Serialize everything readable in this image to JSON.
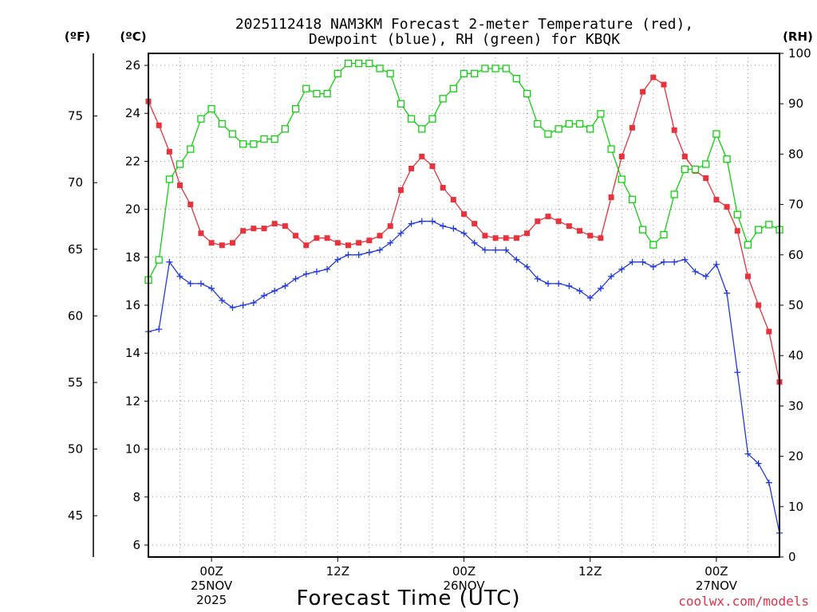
{
  "chart_data": {
    "type": "line",
    "title_line1": "2025112418 NAM3KM Forecast 2-meter Temperature (red),",
    "title_line2": "Dewpoint (blue), RH (green) for KBQK",
    "xlabel": "Forecast Time (UTC)",
    "credit": "coolwx.com/models",
    "units": {
      "fahrenheit": "(ºF)",
      "celsius": "(ºC)",
      "rh": "(RH)"
    },
    "x_range_hours": [
      -6,
      54
    ],
    "celsius_range": [
      5.5,
      26.5
    ],
    "rh_range": [
      0,
      100
    ],
    "x_ticks": [
      {
        "h": 0,
        "line1": "00Z",
        "line2": "25NOV",
        "line3": "2025"
      },
      {
        "h": 12,
        "line1": "12Z",
        "line2": "",
        "line3": ""
      },
      {
        "h": 24,
        "line1": "00Z",
        "line2": "26NOV",
        "line3": ""
      },
      {
        "h": 36,
        "line1": "12Z",
        "line2": "",
        "line3": ""
      },
      {
        "h": 48,
        "line1": "00Z",
        "line2": "27NOV",
        "line3": ""
      }
    ],
    "celsius_ticks": [
      6,
      8,
      10,
      12,
      14,
      16,
      18,
      20,
      22,
      24,
      26
    ],
    "fahrenheit_ticks": [
      45,
      50,
      55,
      60,
      65,
      70,
      75
    ],
    "rh_ticks": [
      0,
      10,
      20,
      30,
      40,
      50,
      60,
      70,
      80,
      90,
      100
    ],
    "series": [
      {
        "name": "Temperature",
        "color": "#e8323c",
        "marker": "filled-square",
        "axis": "celsius",
        "x": [
          -6,
          -5,
          -4,
          -3,
          -2,
          -1,
          0,
          1,
          2,
          3,
          4,
          5,
          6,
          7,
          8,
          9,
          10,
          11,
          12,
          13,
          14,
          15,
          16,
          17,
          18,
          19,
          20,
          21,
          22,
          23,
          24,
          25,
          26,
          27,
          28,
          29,
          30,
          31,
          32,
          33,
          34,
          35,
          36,
          37,
          38,
          39,
          40,
          41,
          42,
          43,
          44,
          45,
          46,
          47,
          48,
          49,
          50,
          51,
          52,
          53,
          54
        ],
        "values": [
          24.5,
          23.5,
          22.4,
          21.0,
          20.2,
          19.0,
          18.6,
          18.5,
          18.6,
          19.1,
          19.2,
          19.2,
          19.4,
          19.3,
          18.9,
          18.5,
          18.8,
          18.8,
          18.6,
          18.5,
          18.6,
          18.7,
          18.9,
          19.3,
          20.8,
          21.7,
          22.2,
          21.8,
          20.9,
          20.4,
          19.8,
          19.4,
          18.9,
          18.8,
          18.8,
          18.8,
          19.0,
          19.5,
          19.7,
          19.5,
          19.3,
          19.1,
          18.9,
          18.8,
          20.5,
          22.2,
          23.4,
          24.9,
          25.5,
          25.2,
          23.3,
          22.2,
          21.6,
          21.3,
          20.4,
          20.1,
          19.1,
          17.2,
          16.0,
          14.9,
          12.8
        ]
      },
      {
        "name": "Dewpoint",
        "color": "#2038e0",
        "marker": "plus",
        "axis": "celsius",
        "x": [
          -6,
          -5,
          -4,
          -3,
          -2,
          -1,
          0,
          1,
          2,
          3,
          4,
          5,
          6,
          7,
          8,
          9,
          10,
          11,
          12,
          13,
          14,
          15,
          16,
          17,
          18,
          19,
          20,
          21,
          22,
          23,
          24,
          25,
          26,
          27,
          28,
          29,
          30,
          31,
          32,
          33,
          34,
          35,
          36,
          37,
          38,
          39,
          40,
          41,
          42,
          43,
          44,
          45,
          46,
          47,
          48,
          49,
          50,
          51,
          52,
          53,
          54
        ],
        "values": [
          14.9,
          15.0,
          17.8,
          17.2,
          16.9,
          16.9,
          16.7,
          16.2,
          15.9,
          16.0,
          16.1,
          16.4,
          16.6,
          16.8,
          17.1,
          17.3,
          17.4,
          17.5,
          17.9,
          18.1,
          18.1,
          18.2,
          18.3,
          18.6,
          19.0,
          19.4,
          19.5,
          19.5,
          19.3,
          19.2,
          19.0,
          18.6,
          18.3,
          18.3,
          18.3,
          17.9,
          17.6,
          17.1,
          16.9,
          16.9,
          16.8,
          16.6,
          16.3,
          16.7,
          17.2,
          17.5,
          17.8,
          17.8,
          17.6,
          17.8,
          17.8,
          17.9,
          17.4,
          17.2,
          17.7,
          16.5,
          13.2,
          9.8,
          9.4,
          8.6,
          6.5
        ]
      },
      {
        "name": "RH",
        "color": "#10d010",
        "marker": "open-square",
        "axis": "rh",
        "x": [
          -6,
          -5,
          -4,
          -3,
          -2,
          -1,
          0,
          1,
          2,
          3,
          4,
          5,
          6,
          7,
          8,
          9,
          10,
          11,
          12,
          13,
          14,
          15,
          16,
          17,
          18,
          19,
          20,
          21,
          22,
          23,
          24,
          25,
          26,
          27,
          28,
          29,
          30,
          31,
          32,
          33,
          34,
          35,
          36,
          37,
          38,
          39,
          40,
          41,
          42,
          43,
          44,
          45,
          46,
          47,
          48,
          49,
          50,
          51,
          52,
          53,
          54
        ],
        "values": [
          55,
          59,
          75,
          78,
          81,
          87,
          89,
          86,
          84,
          82,
          82,
          83,
          83,
          85,
          89,
          93,
          92,
          92,
          96,
          98,
          98,
          98,
          97,
          96,
          90,
          87,
          85,
          87,
          91,
          93,
          96,
          96,
          97,
          97,
          97,
          95,
          92,
          86,
          84,
          85,
          86,
          86,
          85,
          88,
          81,
          75,
          71,
          65,
          62,
          64,
          72,
          77,
          77,
          78,
          84,
          79,
          68,
          62,
          65,
          66,
          65
        ]
      }
    ]
  }
}
